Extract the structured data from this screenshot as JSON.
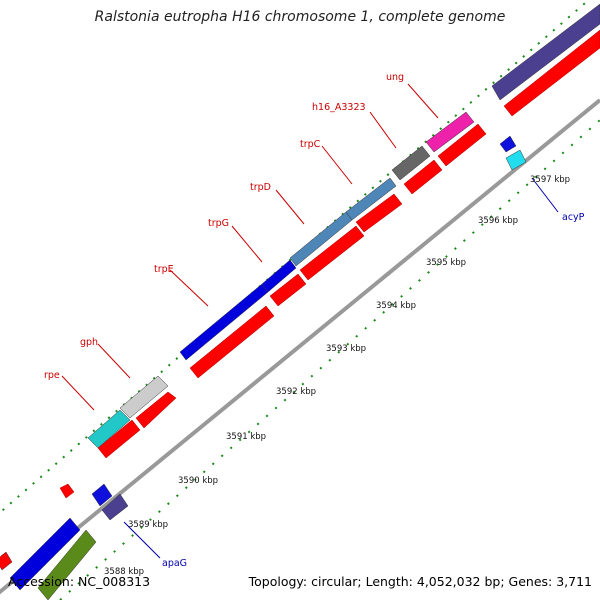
{
  "title": "Ralstonia eutropha H16 chromosome 1, complete genome",
  "footer": {
    "accession": "Accession: NC_008313",
    "summary": "Topology: circular; Length: 4,052,032 bp; Genes: 3,711"
  },
  "colors": {
    "backbone": "#999999",
    "cds": "#ff0000",
    "tick_green": "#1a8a1a",
    "label_red": "#cc0000",
    "label_blue": "#0000aa"
  },
  "scale_labels": [
    "3588 kbp",
    "3589 kbp",
    "3590 kbp",
    "3591 kbp",
    "3592 kbp",
    "3593 kbp",
    "3594 kbp",
    "3595 kbp",
    "3596 kbp",
    "3597 kbp"
  ],
  "genes": [
    {
      "name": "rpe",
      "color": "#cc0000"
    },
    {
      "name": "gph",
      "color": "#cc0000"
    },
    {
      "name": "trpE",
      "color": "#cc0000"
    },
    {
      "name": "trpG",
      "color": "#cc0000"
    },
    {
      "name": "trpD",
      "color": "#cc0000"
    },
    {
      "name": "trpC",
      "color": "#cc0000"
    },
    {
      "name": "h16_A3323",
      "color": "#cc0000"
    },
    {
      "name": "ung",
      "color": "#cc0000"
    },
    {
      "name": "acyP",
      "color": "#0000aa"
    },
    {
      "name": "apaG",
      "color": "#0000aa"
    }
  ],
  "feature_colors": {
    "rpe": "#22c8c8",
    "gph": "#cccccc",
    "trpE": "#0000dd",
    "trpG": "#0000dd",
    "trpD": "#4f86b8",
    "trpC": "#4f86b8",
    "h16_A3323": "#666666",
    "ung": "#ee22aa",
    "top_right": "#4b3f8f",
    "acyP_a": "#1010dd",
    "acyP_b": "#22ddee",
    "apaG_a": "#1010dd",
    "apaG_b": "#4b3f8f",
    "bottom_a": "#0000dd",
    "bottom_b": "#5a8a1a"
  }
}
